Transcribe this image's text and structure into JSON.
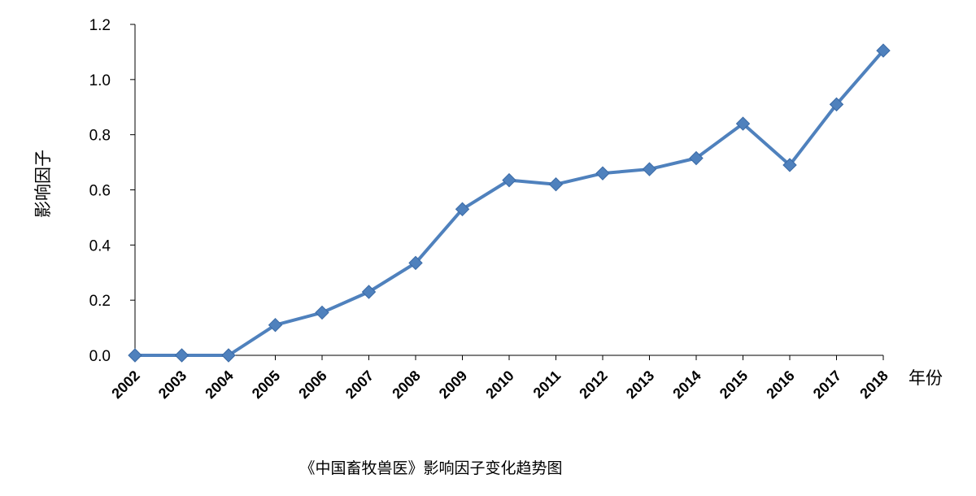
{
  "chart_data": {
    "type": "line",
    "title": "《中国畜牧兽医》影响因子变化趋势图",
    "xlabel": "年份",
    "ylabel": "影响因子",
    "ylim": [
      0,
      1.2
    ],
    "yticks": [
      "0.0",
      "0.2",
      "0.4",
      "0.6",
      "0.8",
      "1.0",
      "1.2"
    ],
    "grid": false,
    "legend": "none",
    "line_color": "#4F81BD",
    "categories": [
      "2002",
      "2003",
      "2004",
      "2005",
      "2006",
      "2007",
      "2008",
      "2009",
      "2010",
      "2011",
      "2012",
      "2013",
      "2014",
      "2015",
      "2016",
      "2017",
      "2018"
    ],
    "series": [
      {
        "values": [
          0.0,
          0.0,
          0.0,
          0.11,
          0.155,
          0.23,
          0.335,
          0.53,
          0.635,
          0.62,
          0.66,
          0.675,
          0.715,
          0.84,
          0.69,
          0.91,
          1.105
        ]
      }
    ]
  }
}
